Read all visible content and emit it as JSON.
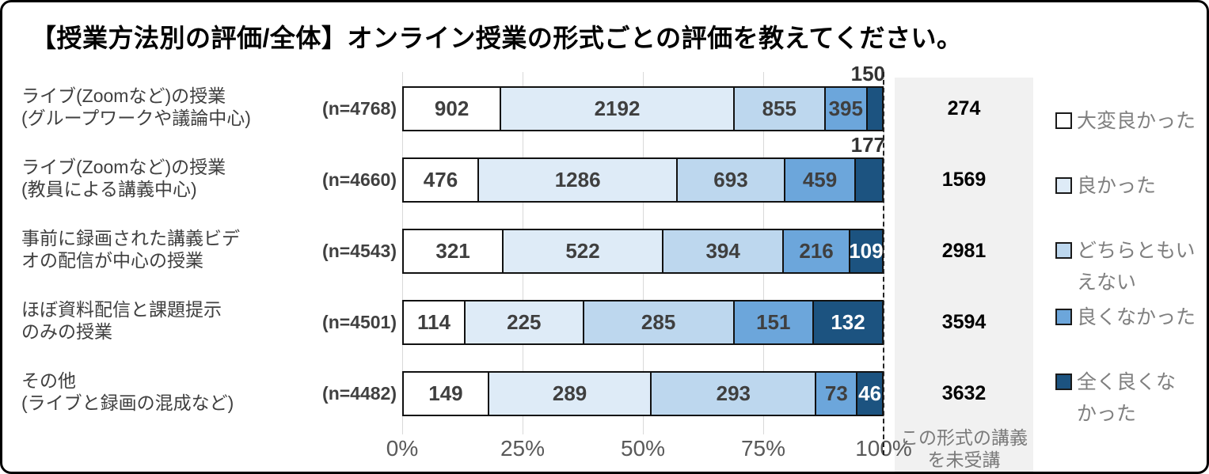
{
  "title": "【授業方法別の評価/全体】オンライン授業の形式ごとの評価を教えてください。",
  "colors": {
    "segment_border": "#111111",
    "gridline": "#d9d9d9",
    "panel_background": "#f1f1f1",
    "axis_text": "#595959",
    "legend_text": "#7f7f7f",
    "value_text_dark": "#3f3f3f",
    "value_text_light": "#ffffff"
  },
  "chart_data": {
    "type": "bar",
    "stacked": true,
    "orientation": "horizontal",
    "title": "【授業方法別の評価/全体】オンライン授業の形式ごとの評価を教えてください。",
    "xlabel": "",
    "ylabel": "",
    "xlim": [
      0,
      100
    ],
    "x_ticks": [
      "0%",
      "25%",
      "50%",
      "75%",
      "100%"
    ],
    "grid": true,
    "categories": [
      {
        "label_lines": [
          "ライブ(Zoomなど)の授業",
          "(グループワークや議論中心)"
        ],
        "n_label": "(n=4768)"
      },
      {
        "label_lines": [
          "ライブ(Zoomなど)の授業",
          "(教員による講義中心)"
        ],
        "n_label": "(n=4660)"
      },
      {
        "label_lines": [
          "事前に録画された講義ビデ",
          "オの配信が中心の授業"
        ],
        "n_label": "(n=4543)"
      },
      {
        "label_lines": [
          "ほぼ資料配信と課題提示",
          "のみの授業"
        ],
        "n_label": "(n=4501)"
      },
      {
        "label_lines": [
          "その他",
          "(ライブと録画の混成など)"
        ],
        "n_label": "(n=4482)"
      }
    ],
    "series": [
      {
        "name": "大変良かった",
        "color": "#ffffff",
        "values": [
          902,
          476,
          321,
          114,
          149
        ]
      },
      {
        "name": "良かった",
        "color": "#deebf7",
        "values": [
          2192,
          1286,
          522,
          225,
          289
        ]
      },
      {
        "name": "どちらともいえない",
        "color": "#bdd7ee",
        "values": [
          855,
          693,
          394,
          285,
          293
        ]
      },
      {
        "name": "良くなかった",
        "color": "#6ca6db",
        "values": [
          395,
          459,
          216,
          151,
          73
        ]
      },
      {
        "name": "全く良くなかった",
        "color": "#1c5380",
        "values": [
          150,
          177,
          109,
          132,
          46
        ]
      }
    ],
    "not_attended_column": {
      "header_lines": [
        "この形式の講義",
        "を未受講"
      ],
      "values": [
        274,
        1569,
        2981,
        3594,
        3632
      ]
    },
    "legend": {
      "position": "right",
      "items": [
        {
          "lines": [
            "大変良かった"
          ],
          "color": "#ffffff"
        },
        {
          "lines": [
            "良かった"
          ],
          "color": "#deebf7"
        },
        {
          "lines": [
            "どちらともい",
            "えない"
          ],
          "color": "#bdd7ee"
        },
        {
          "lines": [
            "良くなかった"
          ],
          "color": "#6ca6db"
        },
        {
          "lines": [
            "全く良くな",
            "かった"
          ],
          "color": "#1c5380"
        }
      ]
    }
  }
}
